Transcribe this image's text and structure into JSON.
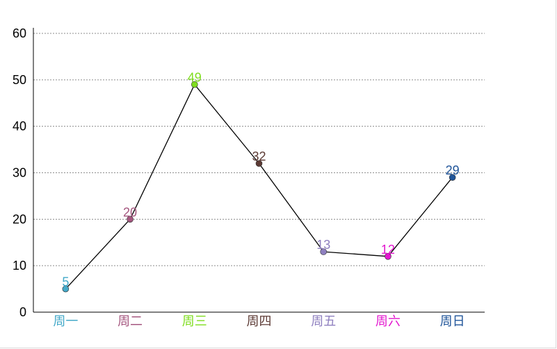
{
  "chart_data": {
    "type": "line",
    "categories": [
      "周一",
      "周二",
      "周三",
      "周四",
      "周五",
      "周六",
      "周日"
    ],
    "values": [
      5,
      20,
      49,
      32,
      13,
      12,
      29
    ],
    "point_colors": [
      "#44a9c9",
      "#a5577f",
      "#7fdd1e",
      "#5c3a34",
      "#8e7fbf",
      "#e317cf",
      "#1f5499"
    ],
    "line_color": "#000000",
    "grid_color": "#8c8c8c",
    "ylim": [
      0,
      60
    ],
    "yticks": [
      0,
      10,
      20,
      30,
      40,
      50,
      60
    ],
    "grid": true,
    "grid_style": "dotted",
    "title": "",
    "xlabel": "",
    "ylabel": ""
  }
}
